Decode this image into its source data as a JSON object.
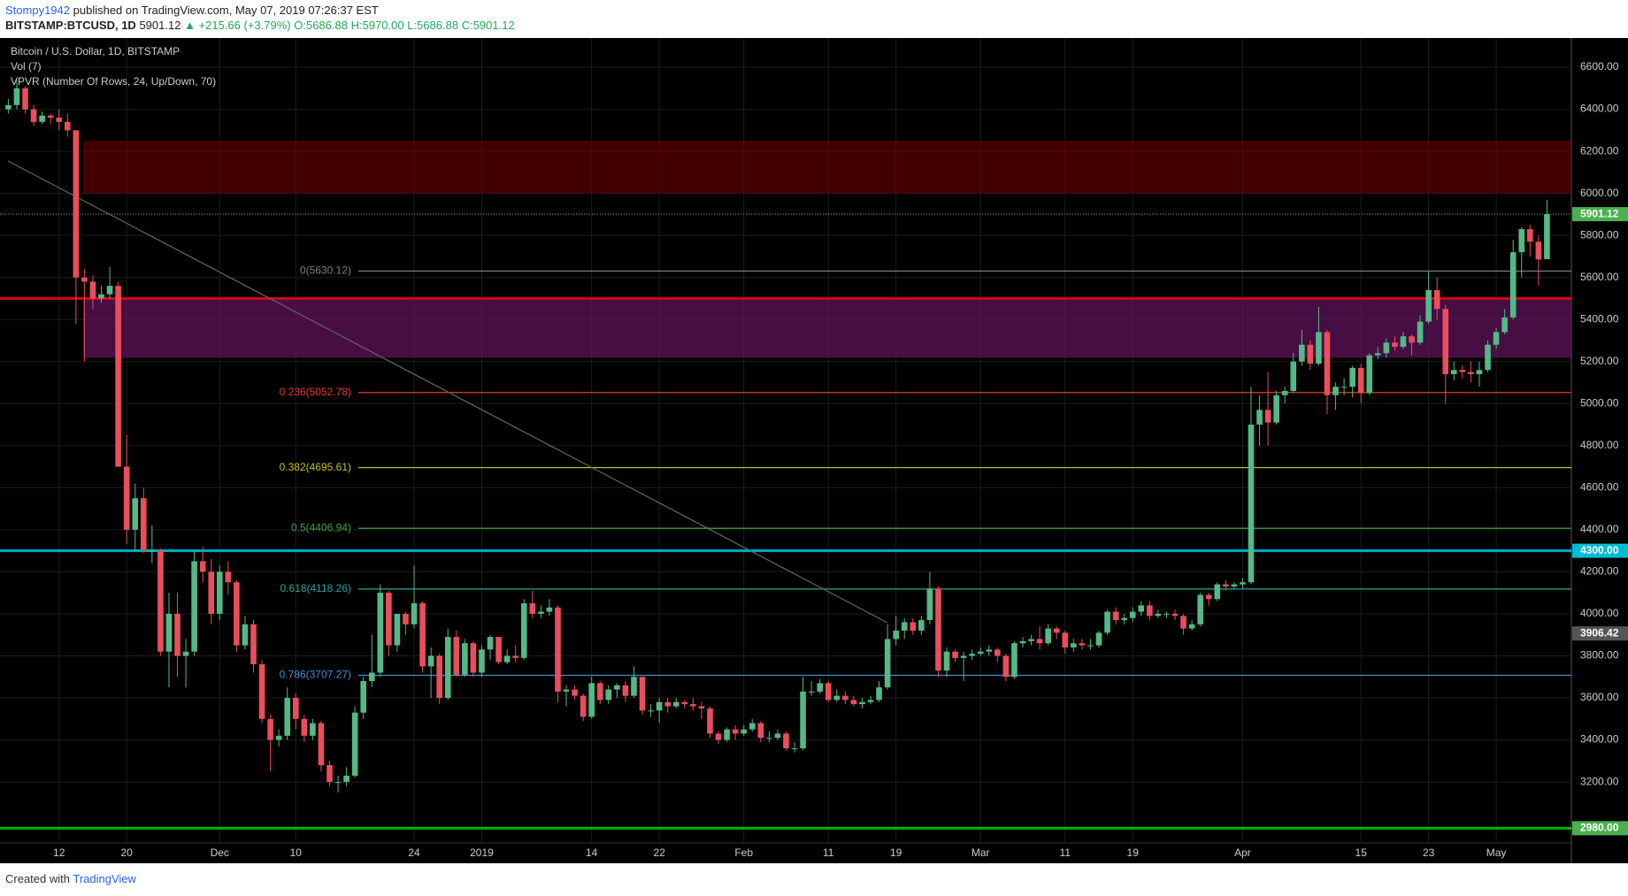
{
  "header": {
    "author": "Stompy1942",
    "published": "published on TradingView.com, May 07, 2019 07:26:37 EST",
    "symbol": "BITSTAMP:BTCUSD, 1D",
    "last": "5901.12",
    "change": "▲ +215.66 (+3.79%)",
    "ohlc": [
      "O:5686.88",
      "H:5970.00",
      "L:5686.88",
      "C:5901.12"
    ]
  },
  "footer": {
    "text": "Created with",
    "brand": "TradingView"
  },
  "chart_data": {
    "type": "candlestick",
    "legend": [
      "Bitcoin / U.S. Dollar, 1D, BITSTAMP",
      "Vol (7)",
      "VPVR (Number Of Rows, 24, Up/Down, 70)"
    ],
    "categories": [
      null,
      null,
      null,
      null,
      null,
      null,
      "12",
      null,
      null,
      null,
      null,
      null,
      null,
      null,
      "20",
      null,
      null,
      null,
      null,
      null,
      null,
      null,
      null,
      null,
      null,
      "Dec",
      null,
      null,
      null,
      null,
      null,
      null,
      null,
      null,
      "10",
      null,
      null,
      null,
      null,
      null,
      null,
      null,
      null,
      null,
      null,
      null,
      null,
      null,
      "24",
      null,
      null,
      null,
      null,
      null,
      null,
      null,
      "2019",
      null,
      null,
      null,
      null,
      null,
      null,
      null,
      null,
      null,
      null,
      null,
      null,
      "14",
      null,
      null,
      null,
      null,
      null,
      null,
      null,
      "22",
      null,
      null,
      null,
      null,
      null,
      null,
      null,
      null,
      null,
      "Feb",
      null,
      null,
      null,
      null,
      null,
      null,
      null,
      null,
      null,
      "11",
      null,
      null,
      null,
      null,
      null,
      null,
      null,
      "19",
      null,
      null,
      null,
      null,
      null,
      null,
      null,
      null,
      null,
      "Mar",
      null,
      null,
      null,
      null,
      null,
      null,
      null,
      null,
      null,
      "11",
      null,
      null,
      null,
      null,
      null,
      null,
      null,
      "19",
      null,
      null,
      null,
      null,
      null,
      null,
      null,
      null,
      null,
      null,
      null,
      null,
      "Apr",
      null,
      null,
      null,
      null,
      null,
      null,
      null,
      null,
      null,
      null,
      null,
      null,
      null,
      "15",
      null,
      null,
      null,
      null,
      null,
      null,
      null,
      "23",
      null,
      null,
      null,
      null,
      null,
      null,
      null,
      "May",
      null,
      null,
      null,
      null,
      null,
      null
    ],
    "candles": [
      [
        6400,
        6450,
        6380,
        6420
      ],
      [
        6420,
        6540,
        6400,
        6500
      ],
      [
        6500,
        6510,
        6380,
        6400
      ],
      [
        6400,
        6420,
        6320,
        6340
      ],
      [
        6340,
        6390,
        6330,
        6370
      ],
      [
        6370,
        6380,
        6330,
        6360
      ],
      [
        6360,
        6400,
        6300,
        6340
      ],
      [
        6340,
        6380,
        6270,
        6300
      ],
      [
        6300,
        6300,
        5380,
        5600
      ],
      [
        5600,
        5640,
        5200,
        5580
      ],
      [
        5580,
        5610,
        5450,
        5500
      ],
      [
        5500,
        5560,
        5480,
        5520
      ],
      [
        5520,
        5650,
        5500,
        5560
      ],
      [
        5560,
        5580,
        4700,
        4700
      ],
      [
        4700,
        4850,
        4330,
        4400
      ],
      [
        4400,
        4620,
        4300,
        4550
      ],
      [
        4550,
        4600,
        4290,
        4300
      ],
      [
        4300,
        4420,
        4240,
        4300
      ],
      [
        4300,
        4310,
        3800,
        3820
      ],
      [
        3820,
        4100,
        3650,
        4000
      ],
      [
        4000,
        4100,
        3700,
        3800
      ],
      [
        3800,
        3880,
        3650,
        3820
      ],
      [
        3820,
        4300,
        3800,
        4250
      ],
      [
        4250,
        4320,
        4150,
        4200
      ],
      [
        4200,
        4260,
        3950,
        4000
      ],
      [
        4000,
        4230,
        3970,
        4200
      ],
      [
        4200,
        4250,
        4090,
        4150
      ],
      [
        4150,
        4160,
        3820,
        3850
      ],
      [
        3850,
        3990,
        3830,
        3950
      ],
      [
        3950,
        3970,
        3720,
        3760
      ],
      [
        3760,
        3780,
        3480,
        3500
      ],
      [
        3500,
        3520,
        3250,
        3400
      ],
      [
        3400,
        3450,
        3370,
        3420
      ],
      [
        3420,
        3650,
        3400,
        3600
      ],
      [
        3600,
        3620,
        3450,
        3500
      ],
      [
        3500,
        3520,
        3390,
        3420
      ],
      [
        3420,
        3500,
        3400,
        3480
      ],
      [
        3480,
        3490,
        3250,
        3280
      ],
      [
        3280,
        3300,
        3180,
        3200
      ],
      [
        3200,
        3230,
        3150,
        3200
      ],
      [
        3200,
        3270,
        3180,
        3230
      ],
      [
        3230,
        3560,
        3220,
        3530
      ],
      [
        3530,
        3700,
        3500,
        3680
      ],
      [
        3680,
        3900,
        3650,
        3720
      ],
      [
        3720,
        4140,
        3700,
        4100
      ],
      [
        4100,
        4110,
        3800,
        3850
      ],
      [
        3850,
        4000,
        3820,
        4000
      ],
      [
        4000,
        4010,
        3900,
        3950
      ],
      [
        3950,
        4230,
        3930,
        4050
      ],
      [
        4050,
        4060,
        3720,
        3750
      ],
      [
        3750,
        3840,
        3600,
        3800
      ],
      [
        3800,
        3810,
        3570,
        3600
      ],
      [
        3600,
        3930,
        3590,
        3890
      ],
      [
        3890,
        3920,
        3700,
        3710
      ],
      [
        3710,
        3880,
        3700,
        3860
      ],
      [
        3860,
        3870,
        3700,
        3720
      ],
      [
        3720,
        3850,
        3700,
        3830
      ],
      [
        3830,
        3900,
        3780,
        3890
      ],
      [
        3890,
        3890,
        3760,
        3770
      ],
      [
        3770,
        3830,
        3760,
        3800
      ],
      [
        3800,
        3850,
        3770,
        3790
      ],
      [
        3790,
        4070,
        3780,
        4050
      ],
      [
        4050,
        4110,
        3980,
        4000
      ],
      [
        4000,
        4040,
        3980,
        4010
      ],
      [
        4010,
        4070,
        3990,
        4030
      ],
      [
        4030,
        4040,
        3580,
        3630
      ],
      [
        3630,
        3660,
        3560,
        3640
      ],
      [
        3640,
        3660,
        3590,
        3610
      ],
      [
        3610,
        3620,
        3490,
        3510
      ],
      [
        3510,
        3700,
        3500,
        3670
      ],
      [
        3670,
        3680,
        3570,
        3590
      ],
      [
        3590,
        3660,
        3570,
        3640
      ],
      [
        3640,
        3670,
        3600,
        3660
      ],
      [
        3660,
        3680,
        3580,
        3610
      ],
      [
        3610,
        3750,
        3600,
        3700
      ],
      [
        3700,
        3700,
        3520,
        3540
      ],
      [
        3540,
        3570,
        3510,
        3540
      ],
      [
        3540,
        3600,
        3480,
        3580
      ],
      [
        3580,
        3600,
        3530,
        3560
      ],
      [
        3560,
        3600,
        3550,
        3580
      ],
      [
        3580,
        3590,
        3550,
        3570
      ],
      [
        3570,
        3600,
        3540,
        3560
      ],
      [
        3560,
        3580,
        3500,
        3550
      ],
      [
        3550,
        3560,
        3410,
        3430
      ],
      [
        3430,
        3440,
        3380,
        3400
      ],
      [
        3400,
        3460,
        3390,
        3450
      ],
      [
        3450,
        3470,
        3400,
        3430
      ],
      [
        3430,
        3470,
        3420,
        3450
      ],
      [
        3450,
        3500,
        3440,
        3480
      ],
      [
        3480,
        3490,
        3390,
        3410
      ],
      [
        3410,
        3440,
        3390,
        3410
      ],
      [
        3410,
        3450,
        3400,
        3430
      ],
      [
        3430,
        3440,
        3350,
        3360
      ],
      [
        3360,
        3390,
        3340,
        3360
      ],
      [
        3360,
        3700,
        3350,
        3630
      ],
      [
        3630,
        3680,
        3610,
        3630
      ],
      [
        3630,
        3690,
        3620,
        3670
      ],
      [
        3670,
        3680,
        3580,
        3590
      ],
      [
        3590,
        3640,
        3580,
        3610
      ],
      [
        3610,
        3630,
        3570,
        3590
      ],
      [
        3590,
        3610,
        3560,
        3570
      ],
      [
        3570,
        3600,
        3550,
        3580
      ],
      [
        3580,
        3610,
        3570,
        3590
      ],
      [
        3590,
        3680,
        3580,
        3650
      ],
      [
        3650,
        3950,
        3640,
        3880
      ],
      [
        3880,
        3990,
        3850,
        3920
      ],
      [
        3920,
        3980,
        3880,
        3960
      ],
      [
        3960,
        3980,
        3900,
        3920
      ],
      [
        3920,
        3990,
        3900,
        3970
      ],
      [
        3970,
        4200,
        3950,
        4120
      ],
      [
        4120,
        4130,
        3700,
        3730
      ],
      [
        3730,
        3840,
        3700,
        3820
      ],
      [
        3820,
        3830,
        3770,
        3790
      ],
      [
        3790,
        3820,
        3680,
        3800
      ],
      [
        3800,
        3830,
        3780,
        3810
      ],
      [
        3810,
        3840,
        3800,
        3820
      ],
      [
        3820,
        3850,
        3800,
        3830
      ],
      [
        3830,
        3840,
        3770,
        3800
      ],
      [
        3800,
        3810,
        3680,
        3700
      ],
      [
        3700,
        3870,
        3690,
        3860
      ],
      [
        3860,
        3890,
        3840,
        3870
      ],
      [
        3870,
        3900,
        3850,
        3880
      ],
      [
        3880,
        3940,
        3830,
        3860
      ],
      [
        3860,
        3950,
        3850,
        3930
      ],
      [
        3930,
        3940,
        3880,
        3910
      ],
      [
        3910,
        3920,
        3810,
        3840
      ],
      [
        3840,
        3880,
        3820,
        3860
      ],
      [
        3860,
        3880,
        3830,
        3850
      ],
      [
        3850,
        3880,
        3830,
        3850
      ],
      [
        3850,
        3920,
        3840,
        3910
      ],
      [
        3910,
        4020,
        3900,
        4010
      ],
      [
        4010,
        4030,
        3950,
        3970
      ],
      [
        3970,
        4000,
        3950,
        3980
      ],
      [
        3980,
        4030,
        3960,
        4010
      ],
      [
        4010,
        4060,
        3990,
        4040
      ],
      [
        4040,
        4060,
        3970,
        3990
      ],
      [
        3990,
        4020,
        3980,
        4000
      ],
      [
        4000,
        4010,
        3980,
        4000
      ],
      [
        4000,
        4020,
        3970,
        3990
      ],
      [
        3990,
        4000,
        3900,
        3930
      ],
      [
        3930,
        3970,
        3920,
        3950
      ],
      [
        3950,
        4100,
        3940,
        4090
      ],
      [
        4090,
        4100,
        4040,
        4070
      ],
      [
        4070,
        4150,
        4060,
        4140
      ],
      [
        4140,
        4160,
        4110,
        4130
      ],
      [
        4130,
        4150,
        4120,
        4140
      ],
      [
        4140,
        4170,
        4120,
        4150
      ],
      [
        4150,
        5080,
        4140,
        4900
      ],
      [
        4900,
        5040,
        4800,
        4970
      ],
      [
        4970,
        5150,
        4800,
        4910
      ],
      [
        4910,
        5060,
        4900,
        5040
      ],
      [
        5040,
        5080,
        5000,
        5060
      ],
      [
        5060,
        5240,
        5050,
        5200
      ],
      [
        5200,
        5350,
        5180,
        5280
      ],
      [
        5280,
        5300,
        5160,
        5190
      ],
      [
        5190,
        5460,
        5180,
        5340
      ],
      [
        5340,
        5350,
        4950,
        5040
      ],
      [
        5040,
        5100,
        4970,
        5080
      ],
      [
        5080,
        5120,
        5040,
        5080
      ],
      [
        5080,
        5180,
        5030,
        5170
      ],
      [
        5170,
        5190,
        5000,
        5050
      ],
      [
        5050,
        5240,
        5040,
        5230
      ],
      [
        5230,
        5270,
        5210,
        5240
      ],
      [
        5240,
        5310,
        5220,
        5290
      ],
      [
        5290,
        5320,
        5250,
        5270
      ],
      [
        5270,
        5340,
        5260,
        5320
      ],
      [
        5320,
        5330,
        5230,
        5290
      ],
      [
        5290,
        5420,
        5280,
        5390
      ],
      [
        5390,
        5630,
        5380,
        5540
      ],
      [
        5540,
        5600,
        5400,
        5450
      ],
      [
        5450,
        5470,
        5000,
        5140
      ],
      [
        5140,
        5200,
        5110,
        5160
      ],
      [
        5160,
        5180,
        5120,
        5150
      ],
      [
        5150,
        5200,
        5100,
        5140
      ],
      [
        5140,
        5200,
        5080,
        5160
      ],
      [
        5160,
        5300,
        5150,
        5280
      ],
      [
        5280,
        5360,
        5260,
        5340
      ],
      [
        5340,
        5450,
        5330,
        5410
      ],
      [
        5410,
        5780,
        5400,
        5720
      ],
      [
        5720,
        5840,
        5600,
        5830
      ],
      [
        5830,
        5850,
        5700,
        5770
      ],
      [
        5770,
        5800,
        5560,
        5685.46
      ],
      [
        5686.88,
        5970,
        5686.88,
        5901.12
      ]
    ],
    "up_color": "#53b987",
    "down_color": "#eb4d5c",
    "ylim": [
      2910,
      6739
    ],
    "yticks": [
      {
        "value": 3200,
        "label": "3200.00"
      },
      {
        "value": 3400,
        "label": "3400.00"
      },
      {
        "value": 3600,
        "label": "3600.00"
      },
      {
        "value": 3800,
        "label": "3800.00"
      },
      {
        "value": 4000,
        "label": "4000.00"
      },
      {
        "value": 4200,
        "label": "4200.00"
      },
      {
        "value": 4400,
        "label": "4400.00"
      },
      {
        "value": 4600,
        "label": "4600.00"
      },
      {
        "value": 4800,
        "label": "4800.00"
      },
      {
        "value": 5000,
        "label": "5000.00"
      },
      {
        "value": 5200,
        "label": "5200.00"
      },
      {
        "value": 5400,
        "label": "5400.00"
      },
      {
        "value": 5600,
        "label": "5600.00"
      },
      {
        "value": 5800,
        "label": "5800.00"
      },
      {
        "value": 6000,
        "label": "6000.00"
      },
      {
        "value": 6200,
        "label": "6200.00"
      },
      {
        "value": 6400,
        "label": "6400.00"
      },
      {
        "value": 6600,
        "label": "6600.00"
      }
    ],
    "grid": true,
    "zones": [
      {
        "low": 6000,
        "high": 6250,
        "color": "rgba(110,0,0,0.6)"
      },
      {
        "low": 5218,
        "high": 5494,
        "color": "rgba(100,20,95,0.7)"
      }
    ],
    "levels": [
      {
        "value": 5500,
        "color": "#d0021b"
      },
      {
        "value": 4300,
        "color": "#00acc1"
      },
      {
        "value": 2980,
        "color": "#00b300"
      }
    ],
    "fib_levels": [
      {
        "value": 5630.12,
        "label": "0(5630.12)",
        "color": "#787b86"
      },
      {
        "value": 5052.78,
        "label": "0.236(5052.78)",
        "color": "#e53935"
      },
      {
        "value": 4695.61,
        "label": "0.382(4695.61)",
        "color": "#c0c020"
      },
      {
        "value": 4406.94,
        "label": "0.5(4406.94)",
        "color": "#43a047"
      },
      {
        "value": 4118.26,
        "label": "0.618(4118.26)",
        "color": "#26a69a"
      },
      {
        "value": 3707.27,
        "label": "0.786(3707.27)",
        "color": "#3d8fd6"
      }
    ],
    "last_price": 5901.12,
    "price_labels": [
      {
        "value": 5901.12,
        "label": "5901.12",
        "color": "#4caf50"
      },
      {
        "value": 4300,
        "label": "4300.00",
        "color": "#00bcd4"
      },
      {
        "value": 3906.42,
        "label": "3906.42",
        "color": "#555555"
      },
      {
        "value": 2980,
        "label": "2980.00",
        "color": "#4caf50"
      }
    ]
  }
}
